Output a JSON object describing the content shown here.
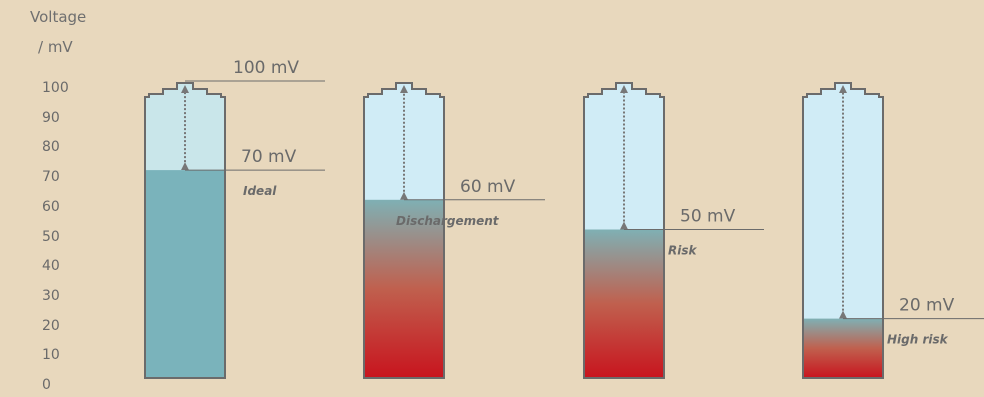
{
  "axis": {
    "label_line1": "Voltage",
    "label_line2": "/ mV",
    "ticks": [
      "100",
      "90",
      "80",
      "70",
      "60",
      "50",
      "40",
      "30",
      "20",
      "10",
      "0"
    ]
  },
  "colors": {
    "background": "#e8d8bd",
    "empty_fill": "#d0ecf6",
    "ideal_fill": "#7ab3bb",
    "ideal_empty_fill": "#c9e6ea",
    "teal_top": "#7fb0b4",
    "red_bottom": "#c8141e",
    "outline": "#6b6b6b",
    "arrow": "#777777"
  },
  "cells": [
    {
      "value_label": "100 mV",
      "fill_level_mV": 70,
      "reading_label": "70 mV",
      "status": "Ideal",
      "fill_style": "ideal"
    },
    {
      "fill_level_mV": 60,
      "reading_label": "60 mV",
      "status": "Dischargement",
      "fill_style": "gradient"
    },
    {
      "fill_level_mV": 50,
      "reading_label": "50 mV",
      "status": "Risk",
      "fill_style": "gradient"
    },
    {
      "fill_level_mV": 20,
      "reading_label": "20 mV",
      "status": "High risk",
      "fill_style": "gradient"
    }
  ]
}
